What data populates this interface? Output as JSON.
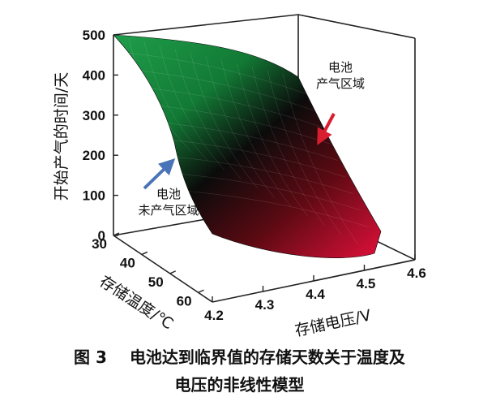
{
  "chart_data": {
    "type": "surface3d",
    "zlabel": "开始产气的时间/天",
    "xlabel": "存储电压/V",
    "ylabel": "存储温度/℃",
    "z_ticks": [
      "0",
      "100",
      "200",
      "300",
      "400",
      "500"
    ],
    "x_ticks": [
      "4.2",
      "4.3",
      "4.4",
      "4.5",
      "4.6"
    ],
    "y_ticks": [
      "30",
      "40",
      "50",
      "60"
    ],
    "zlim": [
      0,
      500
    ],
    "xlim": [
      4.2,
      4.6
    ],
    "ylim": [
      30,
      65
    ],
    "surface_corners": [
      {
        "voltage": 4.2,
        "temperature": 30,
        "days": 490
      },
      {
        "voltage": 4.6,
        "temperature": 30,
        "days": 480
      },
      {
        "voltage": 4.6,
        "temperature": 65,
        "days": 0
      },
      {
        "voltage": 4.2,
        "temperature": 65,
        "days": 30
      }
    ],
    "colors": {
      "high": "#1f9e4a",
      "mid": "#0b0b0b",
      "low": "#e0103a"
    },
    "annotations": [
      {
        "lines": [
          "电池",
          "产气区域"
        ],
        "arrow_color": "#d81e2f"
      },
      {
        "lines": [
          "电池",
          "未产气区域"
        ],
        "arrow_color": "#4a74b8"
      }
    ]
  },
  "caption": {
    "label": "图 3",
    "line1": "电池达到临界值的存储天数关于温度及",
    "line2": "电压的非线性模型"
  }
}
